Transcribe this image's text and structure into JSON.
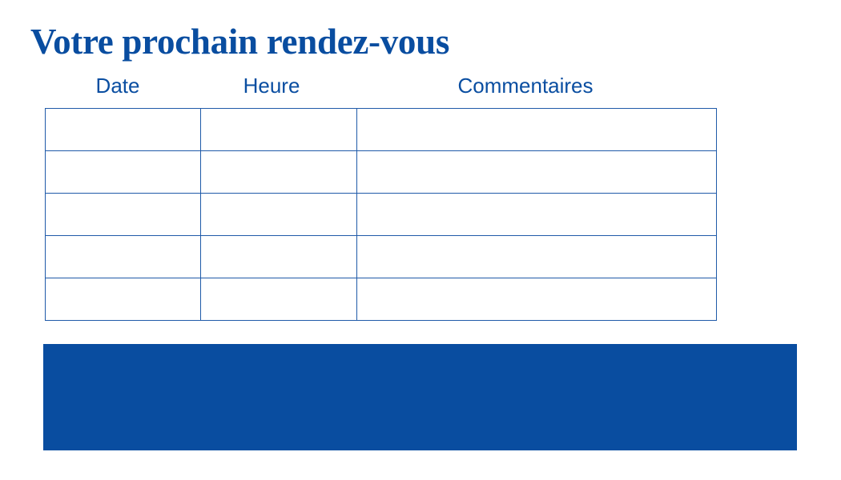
{
  "title": "Votre prochain rendez-vous",
  "table": {
    "headers": [
      "Date",
      "Heure",
      "Commentaires"
    ],
    "rows": [
      [
        "",
        "",
        ""
      ],
      [
        "",
        "",
        ""
      ],
      [
        "",
        "",
        ""
      ],
      [
        "",
        "",
        ""
      ],
      [
        "",
        "",
        ""
      ]
    ]
  },
  "colors": {
    "brand_blue": "#094da0"
  }
}
